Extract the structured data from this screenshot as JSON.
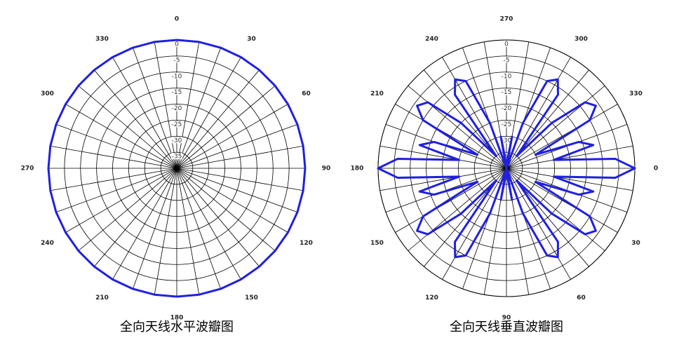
{
  "chart_data": [
    {
      "type": "polar",
      "title": "全向天线水平波瓣图",
      "zero_location": "N",
      "direction": "clockwise",
      "grid_step": 10,
      "rlim": [
        -40,
        0
      ],
      "rticks": [
        0,
        -5,
        -10,
        -15,
        -20,
        -25,
        -30,
        -35
      ],
      "thetaticks": [
        0,
        30,
        60,
        90,
        120,
        150,
        180,
        210,
        240,
        270,
        300,
        330
      ],
      "theta": [
        0,
        10,
        20,
        30,
        40,
        50,
        60,
        70,
        80,
        90,
        100,
        110,
        120,
        130,
        140,
        150,
        160,
        170,
        180,
        190,
        200,
        210,
        220,
        230,
        240,
        250,
        260,
        270,
        280,
        290,
        300,
        310,
        320,
        330,
        340,
        350
      ],
      "series": [
        {
          "color": "#2020e0",
          "values": [
            0,
            0,
            0,
            0,
            0,
            0,
            0,
            0,
            0,
            0,
            0,
            0,
            0,
            0,
            0,
            0,
            0,
            0,
            0,
            0,
            0,
            0,
            0,
            0,
            0,
            0,
            0,
            0,
            0,
            0,
            0,
            0,
            0,
            0,
            0,
            0
          ]
        }
      ]
    },
    {
      "type": "polar",
      "title": "全向天线垂直波瓣图",
      "zero_location": "E",
      "direction": "clockwise",
      "grid_step": 10,
      "rlim": [
        -40,
        0
      ],
      "rticks": [
        0,
        -5,
        -10,
        -15,
        -20,
        -25,
        -30,
        -35
      ],
      "thetaticks": [
        0,
        30,
        60,
        90,
        120,
        150,
        180,
        210,
        240,
        270,
        300,
        330
      ],
      "theta": [
        0,
        5,
        10,
        15,
        20,
        25,
        30,
        35,
        40,
        45,
        50,
        55,
        60,
        65,
        70,
        75,
        80,
        85,
        90,
        95,
        100,
        105,
        110,
        115,
        120,
        125,
        130,
        135,
        140,
        145,
        150,
        155,
        160,
        165,
        170,
        175,
        180,
        185,
        190,
        195,
        200,
        205,
        210,
        215,
        220,
        225,
        230,
        235,
        240,
        245,
        250,
        255,
        260,
        265,
        270,
        275,
        280,
        285,
        290,
        295,
        300,
        305,
        310,
        315,
        320,
        325,
        330,
        335,
        340,
        345,
        350,
        355
      ],
      "series": [
        {
          "color": "#2020e0",
          "values": [
            0,
            -6,
            -25,
            -12,
            -16,
            -30,
            -10,
            -6,
            -8,
            -20,
            -35,
            -12,
            -8,
            -10,
            -25,
            -40,
            -30,
            -38,
            -40,
            -38,
            -30,
            -40,
            -25,
            -10,
            -8,
            -12,
            -35,
            -20,
            -8,
            -6,
            -10,
            -30,
            -16,
            -12,
            -25,
            -6,
            0,
            -6,
            -25,
            -12,
            -16,
            -30,
            -10,
            -6,
            -8,
            -20,
            -35,
            -12,
            -8,
            -10,
            -25,
            -40,
            -30,
            -38,
            -40,
            -38,
            -30,
            -40,
            -25,
            -10,
            -8,
            -12,
            -35,
            -20,
            -8,
            -6,
            -10,
            -30,
            -16,
            -12,
            -25,
            -6
          ]
        }
      ]
    }
  ]
}
